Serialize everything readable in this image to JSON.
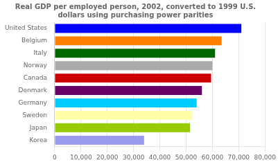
{
  "chart_data": {
    "type": "bar",
    "orientation": "horizontal",
    "title": "Real GDP per employed person, 2002, converted to 1999 U.S.\ndollars using purchasing power parities",
    "categories": [
      "United States",
      "Belgium",
      "Italy",
      "Norway",
      "Canada",
      "Denmark",
      "Germany",
      "Sweden",
      "Japan",
      "Korea"
    ],
    "values": [
      71000,
      63500,
      61000,
      60000,
      59500,
      56000,
      54000,
      52500,
      51500,
      34000
    ],
    "colors": [
      "#0000ff",
      "#ff8000",
      "#006600",
      "#aaaaaa",
      "#cc0000",
      "#660066",
      "#00ccff",
      "#ffffaa",
      "#99cc00",
      "#9999ee"
    ],
    "xlim": [
      0,
      80000
    ],
    "xticks": [
      0,
      {
        "value": 10000,
        "label": "10,000"
      },
      {
        "value": 20000,
        "label": "20,000"
      },
      {
        "value": 30000,
        "label": "30,000"
      },
      {
        "value": 40000,
        "label": "40,000"
      },
      {
        "value": 50000,
        "label": "50,000"
      },
      {
        "value": 60000,
        "label": "60,000"
      },
      {
        "value": 70000,
        "label": "70,000"
      },
      {
        "value": 80000,
        "label": "80,000"
      }
    ],
    "grid": true
  }
}
